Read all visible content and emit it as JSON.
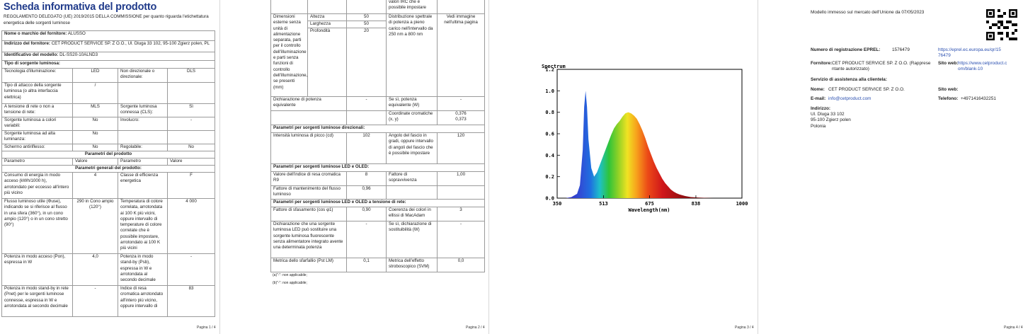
{
  "page1": {
    "title": "Scheda informativa del prodotto",
    "regulation": "REGOLAMENTO DELEGATO (UE) 2019/2015 DELLA COMMISSIONE per quanto riguarda l'etichettatura energetica delle sorgenti luminose",
    "supplier_name_label": "Nome o marchio del fornitore:",
    "supplier_name": "ALUSSO",
    "supplier_address_label": "Indirizzo del fornitore:",
    "supplier_address": "CET PRODUCT SERVICE SP. Z O.O., Ul. Dluga 33 102, 95-100 Zgierz polen, PL",
    "model_label": "Identificativo del modello:",
    "model": "DL-SS20-10ALND3",
    "light_type_label": "Tipo di sorgente luminosa:",
    "tech_label": "Tecnologia d'illuminazione:",
    "tech_value": "LED",
    "directional_label": "Non direzionale o direzionale:",
    "directional_value": "DLS",
    "cap_label": "Tipo di attacco della sorgente luminosa (o altra interfaccia elettrica)",
    "cap_value": "/",
    "mains_label": "A tensione di rete o non a tensione di rete:",
    "mains_value": "MLS",
    "connected_label": "Sorgente luminosa connessa (CLS):",
    "connected_value": "Sì",
    "tunable_label": "Sorgente luminosa a colori variabili:",
    "tunable_value": "No",
    "envelope_label": "Involucro:",
    "envelope_value": "-",
    "hl_label": "Sorgente luminosa ad alta luminanza:",
    "hl_value": "No",
    "glare_label": "Schermo antiriflesso:",
    "glare_value": "No",
    "dimmable_label": "Regolabile:",
    "dimmable_value": "No",
    "params_header": "Parametri del prodotto",
    "col_param": "Parametro",
    "col_value": "Valore",
    "general_header": "Parametri generali del prodotto:",
    "energy_label": "Consumo di energia in modo acceso (kWh/1000 h), arrotondato per eccesso all'intero più vicino",
    "energy_value": "4",
    "class_label": "Classe di efficienza energetica",
    "class_value": "F",
    "flux_label": "Flusso luminoso utile (Φuse), indicando se si riferisce al flusso in una sfera (360°), in un cono ampio (120°) o in un cono stretto (90°)",
    "flux_value": "290 in Cono ampio (120°)",
    "cct_label": "Temperatura di colore correlata, arrotondata ai 100 K più vicini, oppure intervallo di temperature di colore correlate che è possibile impostare, arrotondato ai 100 K più vicini",
    "cct_value": "4 000",
    "pon_label": "Potenza in modo acceso (Pon), espressa in W",
    "pon_value": "4,0",
    "psb_label": "Potenza in modo stand-by (Psb), espressa in W e arrotondata al secondo decimale",
    "psb_value": "-",
    "pnet_label": "Potenza in modo stand-by in rete (Pnet) per le sorgenti luminose connesse, espressa in W e arrotondata al secondo decimale",
    "pnet_value": "-",
    "cri_label": "Indice di resa cromatica arrotondato all'intero più vicino, oppure intervallo di",
    "cri_value": "83",
    "page_number": "Pagina 1 / 4"
  },
  "page2": {
    "irc_cont": "valori IRC che è possibile impostare",
    "dims_label": "Dimensioni esterne senza unità di alimentazione separata, parti per il controllo dell'illuminazione e parti senza funzioni di controllo dell'illuminazione, se presenti (mm)",
    "height_label": "Altezza",
    "height_value": "50",
    "width_label": "Larghezza",
    "width_value": "50",
    "depth_label": "Profondità",
    "depth_value": "20",
    "spd_label": "Distribuzione spettrale di potenza a pieno carico nell'intervallo da 250 nm a 800 nm",
    "spd_value": "Vedi immagine nell'ultima pagina",
    "equiv_label": "Dichiarazione di potenza equivalente",
    "equiv_value": "-",
    "equiv_w_label": "Se sì, potenza equivalente (W)",
    "equiv_w_value": "-",
    "chroma_label": "Coordinate cromatiche (x, y)",
    "chroma_x": "0,376",
    "chroma_y": "0,373",
    "dir_header": "Parametri per sorgenti luminose direzionali:",
    "peak_label": "Intensità luminosa di picco (cd)",
    "peak_value": "102",
    "beam_label": "Angolo del fascio in gradi, oppure intervallo di angoli del fascio che è possibile impostare",
    "beam_value": "120",
    "led_header": "Parametri per sorgenti luminose LED e OLED:",
    "r9_label": "Valore dell'indice di resa cromatica R9",
    "r9_value": "8",
    "survival_label": "Fattore di sopravvivenza",
    "survival_value": "1,00",
    "maint_label": "Fattore di mantenimento del flusso luminoso",
    "maint_value": "0,96",
    "mains_header": "Parametri per sorgenti luminose LED e OLED a tensione di rete:",
    "cosphi_label": "Fattore di sfasamento (cos φ1)",
    "cosphi_value": "0,90",
    "macadam_label": "Coerenza dei colori in ellissi di MacAdam",
    "macadam_value": "3",
    "replace_label": "Dichiarazione che una sorgente luminosa LED può sostituire una sorgente luminosa fluorescente senza alimentatore integrato avente una determinata potenza",
    "replace_value": "-",
    "replace_w_label": "Se sì, dichiarazione di sostituibilità (W)",
    "replace_w_value": "-",
    "flicker_label": "Metrica dello sfarfallio (Pst LM)",
    "flicker_value": "0,1",
    "svm_label": "Metrica dell'effetto stroboscopico (SVM)",
    "svm_value": "0,0",
    "fn_a": "(a)\"-\": non applicabile;",
    "fn_b": "(b)\"-\": non applicabile;",
    "page_number": "Pagina 2 / 4"
  },
  "chart_data": {
    "type": "area",
    "title": "Spectrum",
    "xlabel": "Wavelength(nm)",
    "ylabel": "",
    "xlim": [
      350,
      1000
    ],
    "ylim": [
      0,
      1.2
    ],
    "xticks": [
      "350",
      "513",
      "675",
      "838",
      "1000"
    ],
    "yticks": [
      "0.0",
      "0.2",
      "0.4",
      "0.6",
      "0.8",
      "1.0",
      "1.2"
    ],
    "grid": false,
    "x": [
      350,
      380,
      400,
      420,
      430,
      440,
      445,
      450,
      455,
      460,
      470,
      480,
      490,
      500,
      510,
      520,
      530,
      540,
      550,
      560,
      570,
      580,
      590,
      600,
      610,
      620,
      630,
      640,
      650,
      660,
      670,
      680,
      690,
      700,
      710,
      720,
      730,
      740,
      750,
      760,
      770,
      780,
      800,
      820,
      850,
      900,
      1000
    ],
    "values": [
      0.0,
      0.0,
      0.01,
      0.04,
      0.12,
      0.45,
      0.85,
      1.0,
      0.85,
      0.55,
      0.28,
      0.2,
      0.24,
      0.31,
      0.38,
      0.45,
      0.52,
      0.59,
      0.65,
      0.69,
      0.72,
      0.76,
      0.79,
      0.8,
      0.79,
      0.77,
      0.74,
      0.69,
      0.63,
      0.56,
      0.48,
      0.41,
      0.34,
      0.28,
      0.23,
      0.18,
      0.14,
      0.11,
      0.08,
      0.06,
      0.045,
      0.035,
      0.02,
      0.01,
      0.005,
      0.0,
      0.0
    ],
    "page_number": "Pagina 3 / 4"
  },
  "page4": {
    "market_date": "Modello immesso sul mercato dell'Unione da 07/05/2023",
    "eprel_label": "Numero di registrazione EPREL:",
    "eprel_value": "1576479",
    "eprel_link_1": "https://eprel.ec.europa.eu/qr/15",
    "eprel_link_2": "76479",
    "supplier_label": "Fornitore:",
    "supplier_1": "CET PRODUCT SERVICE SP. Z O.O. (Rappresе",
    "supplier_2": "ntante autorizzato)",
    "website_label": "Sito web:",
    "website_1": "https://www.cetproduct.c",
    "website_2": "om/blank-10",
    "assist_label": "Servizio di assistenza alla clientela:",
    "name_label": "Nome:",
    "name_value": "CET PRODUCT SERVICE SP. Z O.O.",
    "website2_label": "Sito web:",
    "email_label": "E-mail:",
    "email_value": "info@cetproduct.com",
    "phone_label": "Telefono:",
    "phone_value": "+4971416432251",
    "address_label": "Indirizzo:",
    "address_1": "Ul. Dluga 33 102",
    "address_2": "95-100 Zgierz polen",
    "address_3": "Polonia",
    "page_number": "Pagina 4 / 4"
  }
}
